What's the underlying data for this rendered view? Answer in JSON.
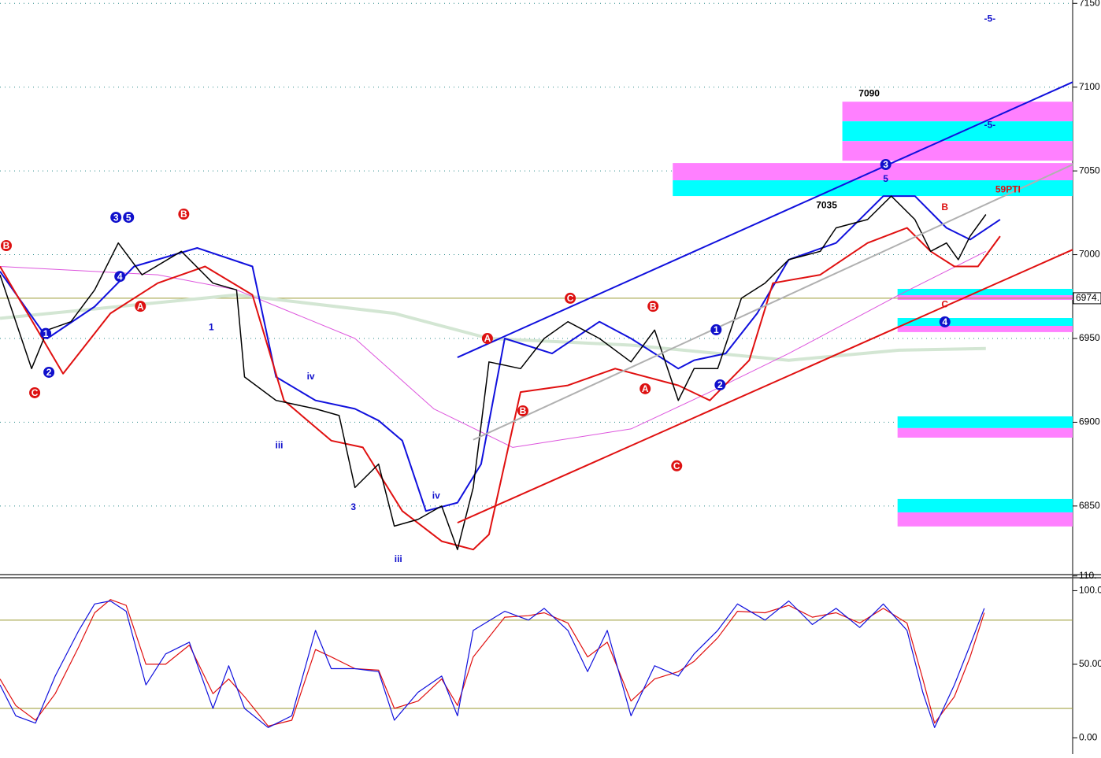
{
  "chart_data": [
    {
      "type": "line",
      "xlim": [
        0,
        272
      ],
      "ylim": [
        6810,
        7152
      ],
      "yticks": [
        6850,
        6900,
        6950,
        7000,
        7050,
        7100,
        7150
      ],
      "grid": true,
      "last_price": {
        "value": 6974,
        "label": "6974."
      },
      "series": [
        {
          "color": "#d3e6d3",
          "width": 4,
          "x": [
            0,
            60,
            100,
            124,
            160,
            200,
            228,
            250
          ],
          "values": [
            6962,
            6976,
            6965,
            6950,
            6946,
            6937,
            6943,
            6944
          ]
        },
        {
          "color": "#dd55dd",
          "width": 1,
          "x": [
            0,
            40,
            60,
            90,
            110,
            130,
            160,
            180,
            200,
            228,
            250
          ],
          "values": [
            6993,
            6988,
            6979,
            6950,
            6908,
            6885,
            6896,
            6918,
            6941,
            6976,
            7002
          ]
        },
        {
          "color": "#1010dd",
          "width": 2,
          "x": [
            0,
            12,
            24,
            34,
            50,
            64,
            70,
            80,
            90,
            96,
            102,
            108,
            116,
            122,
            128,
            140,
            152,
            160,
            172,
            176,
            184,
            192,
            200,
            212,
            224,
            232,
            240,
            246,
            253.6
          ],
          "values": [
            6990,
            6950,
            6969,
            6993,
            7004,
            6993,
            6927,
            6913,
            6908,
            6901,
            6889,
            6847,
            6852,
            6875,
            6950,
            6941,
            6960,
            6950,
            6932,
            6937,
            6941,
            6965,
            6997,
            7007,
            7035,
            7035,
            7016,
            7009,
            7021
          ]
        },
        {
          "color": "#e01010",
          "width": 2,
          "x": [
            0,
            16,
            28,
            40,
            52,
            64,
            72,
            84,
            92,
            102,
            112,
            120,
            124,
            132,
            144,
            156,
            172,
            180,
            190,
            196,
            208,
            220,
            230,
            236,
            242,
            248,
            253.6
          ],
          "values": [
            6993,
            6929,
            6965,
            6983,
            6993,
            6976,
            6913,
            6889,
            6885,
            6847,
            6829,
            6824,
            6833,
            6918,
            6922,
            6932,
            6922,
            6913,
            6937,
            6983,
            6988,
            7007,
            7016,
            7002,
            6993,
            6993,
            7011
          ]
        },
        {
          "color": "#000000",
          "width": 1.5,
          "x": [
            0,
            8,
            12,
            18,
            24,
            30,
            36,
            46,
            54,
            60,
            62,
            70,
            80,
            86,
            90,
            96,
            100,
            106,
            112,
            116,
            120,
            124,
            132,
            138,
            144,
            152,
            160,
            166,
            172,
            176,
            182,
            188,
            194,
            200,
            208,
            212,
            220,
            226,
            232,
            236,
            240,
            243,
            246,
            250
          ],
          "values": [
            6988,
            6932,
            6955,
            6960,
            6979,
            7007,
            6988,
            7002,
            6983,
            6979,
            6927,
            6913,
            6908,
            6904,
            6861,
            6875,
            6838,
            6842,
            6850,
            6824,
            6861,
            6936,
            6932,
            6950,
            6960,
            6950,
            6936,
            6955,
            6913,
            6932,
            6932,
            6974,
            6983,
            6997,
            7002,
            7016,
            7021,
            7035,
            7021,
            7002,
            7007,
            6997,
            7011,
            7024
          ]
        }
      ],
      "zones": [
        {
          "x0": 213.6,
          "y0": 7079.6,
          "y1": 7091.3,
          "color": "#ff80ff"
        },
        {
          "x0": 213.6,
          "y0": 7067.8,
          "y1": 7079.6,
          "color": "#00ffff"
        },
        {
          "x0": 213.6,
          "y0": 7056.1,
          "y1": 7067.8,
          "color": "#ff80ff"
        },
        {
          "x0": 170.6,
          "y0": 7044.4,
          "y1": 7054.7,
          "color": "#ff80ff"
        },
        {
          "x0": 170.6,
          "y0": 7035,
          "y1": 7044.4,
          "color": "#00ffff"
        },
        {
          "x0": 227.6,
          "y0": 6975.8,
          "y1": 6979.6,
          "color": "#00ffff"
        },
        {
          "x0": 227.6,
          "y0": 6973,
          "y1": 6975.8,
          "color": "#ff80ff"
        },
        {
          "x0": 227.6,
          "y0": 6957.5,
          "y1": 6962.2,
          "color": "#00ffff"
        },
        {
          "x0": 227.6,
          "y0": 6953.8,
          "y1": 6957.5,
          "color": "#ff80ff"
        },
        {
          "x0": 227.6,
          "y0": 6896.5,
          "y1": 6903.5,
          "color": "#00ffff"
        },
        {
          "x0": 227.6,
          "y0": 6890.8,
          "y1": 6896.5,
          "color": "#ff80ff"
        },
        {
          "x0": 227.6,
          "y0": 6846.2,
          "y1": 6854.2,
          "color": "#00ffff"
        },
        {
          "x0": 227.6,
          "y0": 6837.8,
          "y1": 6846.2,
          "color": "#ff80ff"
        }
      ],
      "trendlines": [
        {
          "x0": 116,
          "y0": 6938.7,
          "x1": 272,
          "y1": 7103,
          "color": "#1010dd"
        },
        {
          "x0": 116,
          "y0": 6840,
          "x1": 272,
          "y1": 7003,
          "color": "#e01010"
        },
        {
          "x0": 120,
          "y0": 6889.5,
          "x1": 272,
          "y1": 7053.8,
          "color": "#b0b0b0"
        }
      ],
      "annotations": [
        {
          "text": "B",
          "x": 1.6,
          "y": 7005.4,
          "color": "#dd1111",
          "style": "circle"
        },
        {
          "text": "C",
          "x": 8.8,
          "y": 6917.6,
          "color": "#dd1111",
          "style": "circle"
        },
        {
          "text": "1",
          "x": 11.6,
          "y": 6953,
          "color": "#1010cc",
          "style": "circle"
        },
        {
          "text": "2",
          "x": 12.4,
          "y": 6929.8,
          "color": "#1010cc",
          "style": "circle"
        },
        {
          "text": "3",
          "x": 29.4,
          "y": 7022.3,
          "color": "#1010cc",
          "style": "circle"
        },
        {
          "text": "5",
          "x": 32.6,
          "y": 7022.3,
          "color": "#1010cc",
          "style": "circle"
        },
        {
          "text": "4",
          "x": 30.4,
          "y": 6987,
          "color": "#1010cc",
          "style": "circle"
        },
        {
          "text": "A",
          "x": 35.6,
          "y": 6969.2,
          "color": "#dd1111",
          "style": "circle"
        },
        {
          "text": "B",
          "x": 46.6,
          "y": 7024.2,
          "color": "#dd1111",
          "style": "circle"
        },
        {
          "text": "A",
          "x": 123.6,
          "y": 6950,
          "color": "#dd1111",
          "style": "circle"
        },
        {
          "text": "B",
          "x": 132.6,
          "y": 6906.8,
          "color": "#dd1111",
          "style": "circle"
        },
        {
          "text": "C",
          "x": 144.6,
          "y": 6974,
          "color": "#dd1111",
          "style": "circle"
        },
        {
          "text": "B",
          "x": 165.6,
          "y": 6969.2,
          "color": "#dd1111",
          "style": "circle"
        },
        {
          "text": "A",
          "x": 163.6,
          "y": 6920,
          "color": "#dd1111",
          "style": "circle"
        },
        {
          "text": "C",
          "x": 171.6,
          "y": 6874,
          "color": "#dd1111",
          "style": "circle"
        },
        {
          "text": "1",
          "x": 181.6,
          "y": 6955.2,
          "color": "#1010cc",
          "style": "circle"
        },
        {
          "text": "2",
          "x": 182.6,
          "y": 6922.3,
          "color": "#1010cc",
          "style": "circle"
        },
        {
          "text": "3",
          "x": 224.6,
          "y": 7053.8,
          "color": "#1010cc",
          "style": "circle"
        },
        {
          "text": "4",
          "x": 239.6,
          "y": 6959.9,
          "color": "#1010cc",
          "style": "circle"
        },
        {
          "text": "7090",
          "x": 220.4,
          "y": 7096,
          "color": "#000000",
          "style": "text"
        },
        {
          "text": "7035",
          "x": 209.6,
          "y": 7029.3,
          "color": "#000000",
          "style": "text"
        },
        {
          "text": "59PTI",
          "x": 255.6,
          "y": 7038.7,
          "color": "#dd1111",
          "style": "text"
        },
        {
          "text": "-5-",
          "x": 251,
          "y": 7140.6,
          "color": "#1010cc",
          "style": "text"
        },
        {
          "text": "-5-",
          "x": 251,
          "y": 7077.2,
          "color": "#1010cc",
          "style": "text"
        },
        {
          "text": "iii",
          "x": 70.8,
          "y": 6886,
          "color": "#1010cc",
          "style": "text"
        },
        {
          "text": "iii",
          "x": 101,
          "y": 6818,
          "color": "#1010cc",
          "style": "text"
        },
        {
          "text": "1",
          "x": 53.6,
          "y": 6956.5,
          "color": "#1010cc",
          "style": "text"
        },
        {
          "text": "3",
          "x": 89.6,
          "y": 6849,
          "color": "#1010cc",
          "style": "text"
        },
        {
          "text": "iv",
          "x": 78.8,
          "y": 6927,
          "color": "#1010cc",
          "style": "text"
        },
        {
          "text": "iv",
          "x": 110.6,
          "y": 6856,
          "color": "#1010cc",
          "style": "text"
        },
        {
          "text": "5",
          "x": 224.6,
          "y": 7045,
          "color": "#1010cc",
          "style": "text"
        },
        {
          "text": "B",
          "x": 239.6,
          "y": 7028,
          "color": "#dd1111",
          "style": "text"
        },
        {
          "text": "C",
          "x": 239.6,
          "y": 6970,
          "color": "#dd1111",
          "style": "text"
        }
      ]
    },
    {
      "type": "line",
      "xlim": [
        0,
        272
      ],
      "ylim": [
        -11,
        112
      ],
      "yticks": [
        {
          "value": 0,
          "label": "0.00"
        },
        {
          "value": 50,
          "label": "50.00"
        },
        {
          "value": 100,
          "label": "100.0"
        },
        {
          "value": 110,
          "label": "110."
        }
      ],
      "levels": [
        20,
        80
      ],
      "x": [
        0,
        4,
        9,
        14,
        20,
        24,
        28,
        32,
        37,
        42,
        48,
        54,
        58,
        62,
        68,
        74,
        80,
        84,
        90,
        96,
        100,
        106,
        112,
        116,
        120,
        128,
        134,
        138,
        144,
        149,
        154,
        160,
        166,
        172,
        176,
        182,
        187,
        194,
        200,
        206,
        212,
        218,
        224,
        230,
        234,
        237,
        242,
        246,
        249.6
      ],
      "series": [
        {
          "color": "#e01010",
          "values": [
            40,
            22,
            12,
            30,
            62,
            85,
            94,
            90,
            50,
            50,
            63,
            30,
            40,
            28,
            8,
            12,
            60,
            55,
            47,
            46,
            20,
            25,
            40,
            22,
            55,
            82,
            83,
            85,
            78,
            55,
            65,
            25,
            40,
            45,
            52,
            68,
            86,
            85,
            90,
            82,
            85,
            78,
            88,
            78,
            40,
            10,
            28,
            55,
            85
          ]
        },
        {
          "color": "#1010dd",
          "values": [
            36,
            15,
            10,
            42,
            73,
            91,
            93,
            86,
            36,
            57,
            65,
            20,
            49,
            20,
            7,
            15,
            73,
            47,
            47,
            45,
            12,
            31,
            42,
            15,
            73,
            86,
            80,
            88,
            73,
            45,
            73,
            15,
            49,
            42,
            57,
            73,
            91,
            80,
            93,
            77,
            88,
            75,
            91,
            73,
            31,
            7,
            36,
            63,
            88
          ]
        }
      ]
    }
  ]
}
